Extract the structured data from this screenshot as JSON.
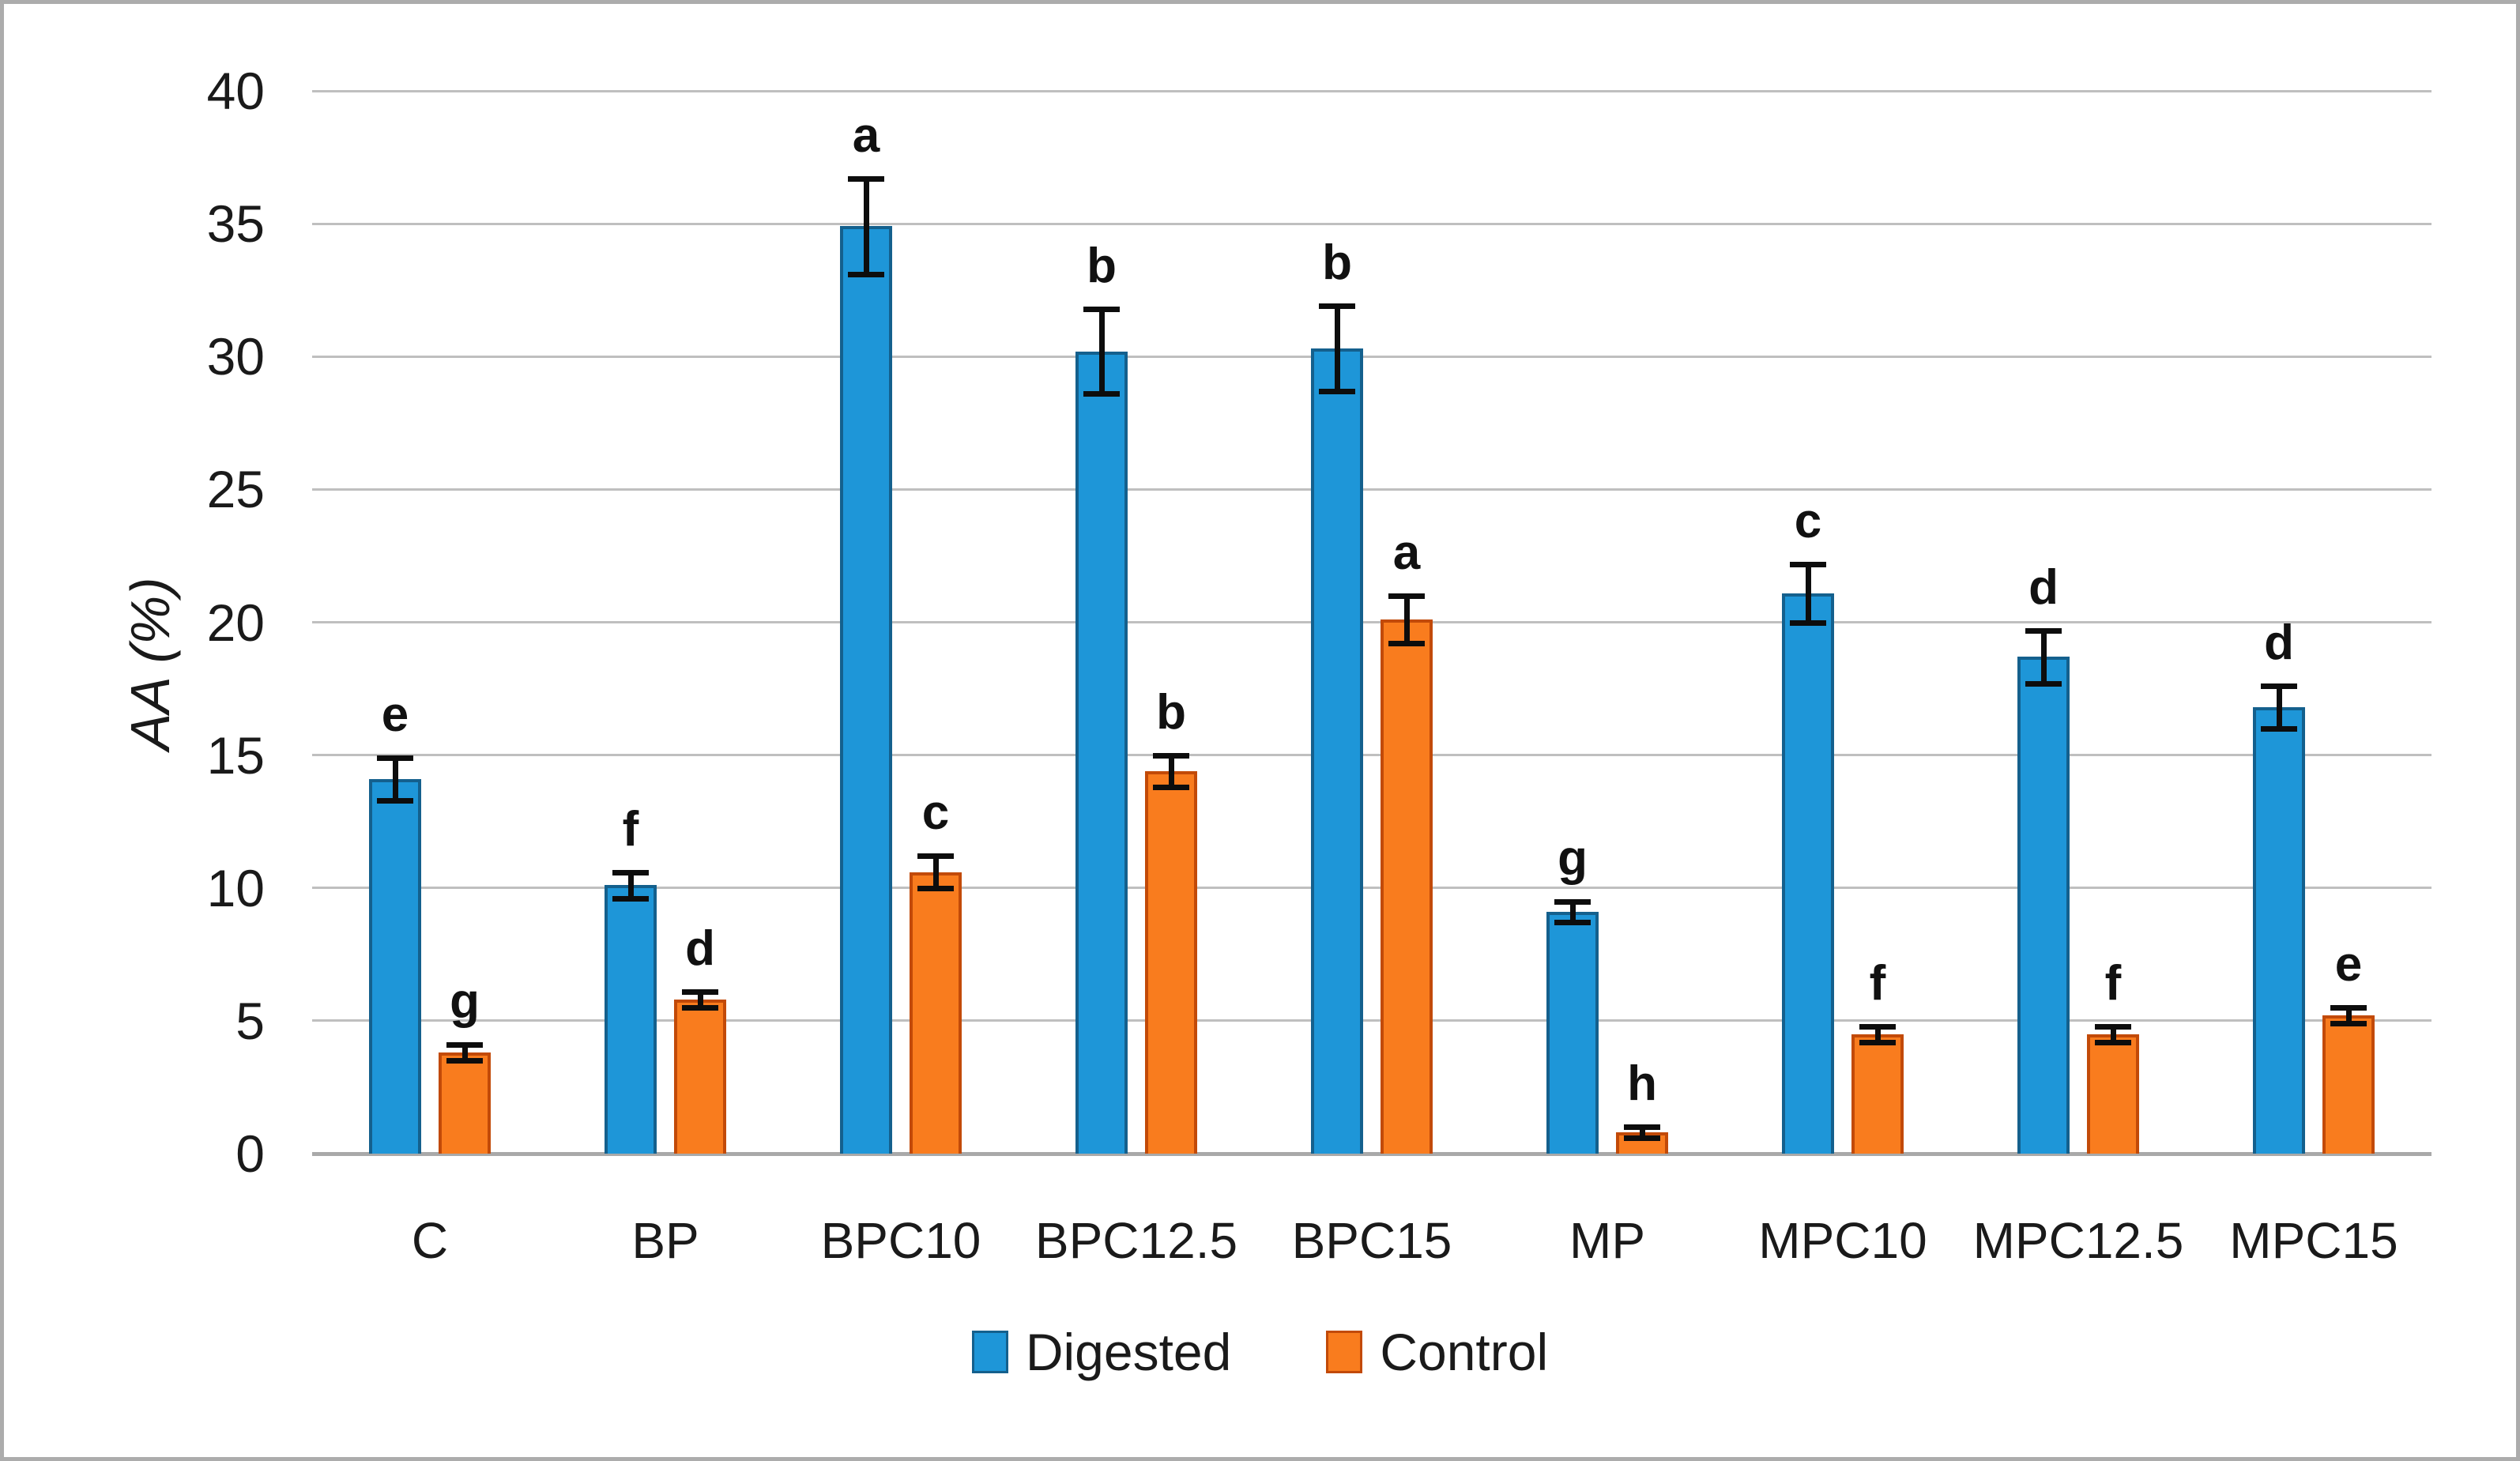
{
  "chart_data": {
    "type": "bar",
    "title": "",
    "ylabel": "AA (%)",
    "xlabel": "",
    "ylim": [
      0,
      40
    ],
    "y_ticks": [
      40,
      35,
      30,
      25,
      20,
      15,
      10,
      5,
      0
    ],
    "grid": true,
    "legend_position": "bottom-center",
    "categories": [
      "C",
      "BP",
      "BPC10",
      "BPC12.5",
      "BPC15",
      "MP",
      "MPC10",
      "MPC12.5",
      "MPC15"
    ],
    "series": [
      {
        "name": "Digested",
        "color": "#1E96D8",
        "border_color": "#14608D",
        "values": [
          14.1,
          10.1,
          34.9,
          30.2,
          30.3,
          9.1,
          21.1,
          18.7,
          16.8
        ],
        "errors": [
          0.8,
          0.5,
          1.8,
          1.6,
          1.6,
          0.4,
          1.1,
          1.0,
          0.8
        ],
        "letters": [
          "e",
          "f",
          "a",
          "b",
          "b",
          "g",
          "c",
          "d",
          "d"
        ]
      },
      {
        "name": "Control",
        "color": "#F97C1E",
        "border_color": "#C24A08",
        "values": [
          3.8,
          5.8,
          10.6,
          14.4,
          20.1,
          0.8,
          4.5,
          4.5,
          5.2
        ],
        "errors": [
          0.3,
          0.3,
          0.6,
          0.6,
          0.9,
          0.2,
          0.3,
          0.3,
          0.3
        ],
        "letters": [
          "g",
          "d",
          "c",
          "b",
          "a",
          "h",
          "f",
          "f",
          "e"
        ]
      }
    ],
    "colors": {
      "gridline": "#BFBFBF",
      "baseline": "#A9A9A9",
      "error_bar": "#0D0D0D",
      "figure_border": "#ACACAC",
      "text": "#1A1A1A"
    }
  }
}
